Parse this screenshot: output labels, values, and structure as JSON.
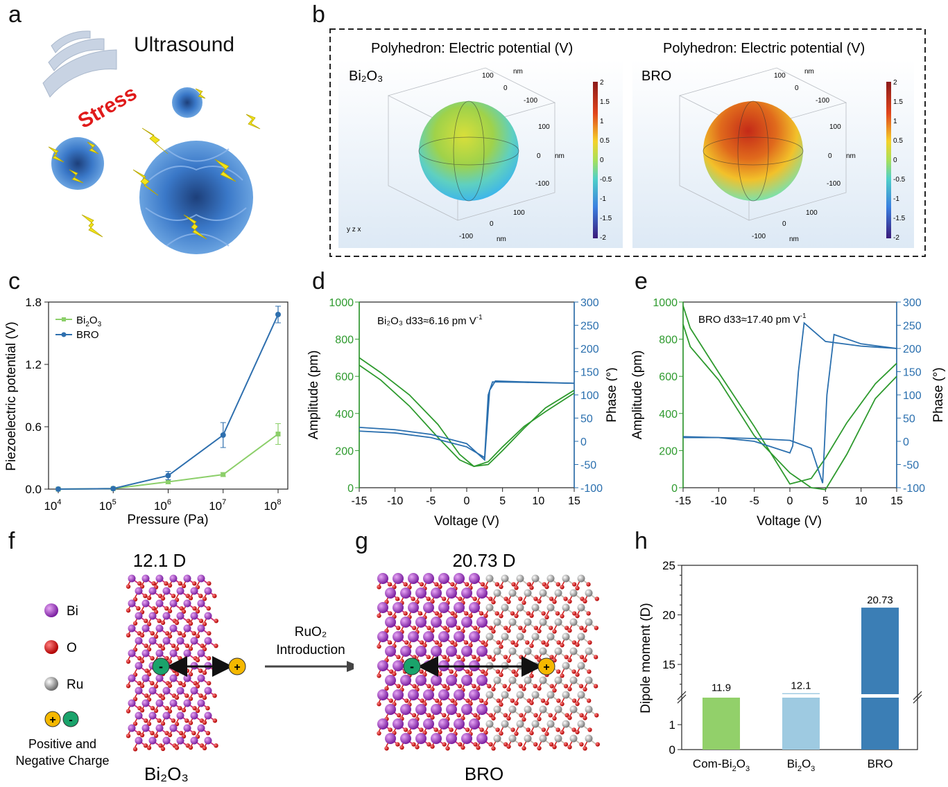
{
  "panels": {
    "a": "a",
    "b": "b",
    "c": "c",
    "d": "d",
    "e": "e",
    "f": "f",
    "g": "g",
    "h": "h"
  },
  "panel_a": {
    "title": "Ultrasound",
    "stress": "Stress",
    "colors": {
      "flower": "#3a78c8",
      "bolt": "#f2e31a",
      "stress": "#e01b1b"
    }
  },
  "panel_b": {
    "left": {
      "title": "Polyhedron: Electric potential (V)",
      "material": "Bi₂O₃"
    },
    "right": {
      "title": "Polyhedron: Electric potential (V)",
      "material": "BRO"
    },
    "colorbar_ticks": [
      "2",
      "1.5",
      "1",
      "0.5",
      "0",
      "-0.5",
      "-1",
      "-1.5",
      "-2"
    ],
    "axis_ticks": {
      "t100": "100",
      "t0": "0",
      "tm100": "-100",
      "nm": "nm"
    },
    "triad": "y z x"
  },
  "chart_data": [
    {
      "type": "line",
      "id": "c",
      "xlabel": "Pressure (Pa)",
      "ylabel": "Piezoelectric potential (V)",
      "categories": [
        "10",
        "10",
        "10",
        "10",
        "10"
      ],
      "category_exponents": [
        "4",
        "5",
        "6",
        "7",
        "8"
      ],
      "ylim": [
        0,
        1.8
      ],
      "yticks": [
        "0.0",
        "0.6",
        "1.2",
        "1.8"
      ],
      "series": [
        {
          "name": "Bi",
          "name_sub": "2",
          "name_mid": "O",
          "name_sub2": "3",
          "color": "#8ccf6a",
          "values": [
            0.0,
            0.005,
            0.07,
            0.14,
            0.53
          ],
          "err": [
            0,
            0,
            0.02,
            0.02,
            0.1
          ]
        },
        {
          "name": "BRO",
          "color": "#2e6fae",
          "values": [
            0.0,
            0.005,
            0.13,
            0.52,
            1.68
          ],
          "err": [
            0,
            0,
            0.04,
            0.12,
            0.08
          ]
        }
      ]
    },
    {
      "type": "line",
      "id": "d",
      "xlabel": "Voltage (V)",
      "ylabel": "Amplitude (pm)",
      "y2label": "Phase (°)",
      "annotation": "Bi₂O₃  d33≈6.16 pm V",
      "annotation_exp": "-1",
      "xlim": [
        -15,
        15
      ],
      "ylim": [
        0,
        1000
      ],
      "y2lim": [
        -100,
        300
      ],
      "xticks": [
        "-15",
        "-10",
        "-5",
        "0",
        "5",
        "10",
        "15"
      ],
      "yticks": [
        "0",
        "200",
        "400",
        "600",
        "800",
        "1000"
      ],
      "y2ticks": [
        "-100",
        "-50",
        "0",
        "50",
        "100",
        "150",
        "200",
        "250",
        "300"
      ],
      "amplitude_up": {
        "x": [
          -15,
          -12,
          -8,
          -4,
          -1,
          1,
          3,
          5,
          8,
          11,
          15
        ],
        "y": [
          700,
          620,
          500,
          340,
          180,
          115,
          140,
          220,
          330,
          410,
          510
        ]
      },
      "amplitude_down": {
        "x": [
          -15,
          -12,
          -8,
          -4,
          -1,
          1,
          3,
          5,
          8,
          11,
          15
        ],
        "y": [
          660,
          580,
          440,
          270,
          150,
          115,
          125,
          200,
          320,
          430,
          525
        ]
      },
      "phase_up": {
        "x": [
          -15,
          -10,
          -5,
          0,
          2.5,
          3.2,
          4,
          8,
          15
        ],
        "y": [
          30,
          25,
          15,
          -5,
          -40,
          110,
          130,
          128,
          125
        ]
      },
      "phase_down": {
        "x": [
          -15,
          -10,
          -5,
          0,
          2.5,
          3.0,
          3.6,
          8,
          15
        ],
        "y": [
          22,
          18,
          8,
          -12,
          -35,
          100,
          128,
          127,
          125
        ]
      }
    },
    {
      "type": "line",
      "id": "e",
      "xlabel": "Voltage (V)",
      "ylabel": "Amplitude (pm)",
      "y2label": "Phase (°)",
      "annotation": "BRO  d33≈17.40 pm V",
      "annotation_exp": "-1",
      "xlim": [
        -15,
        15
      ],
      "ylim": [
        0,
        1000
      ],
      "y2lim": [
        -100,
        300
      ],
      "xticks": [
        "-15",
        "-10",
        "-5",
        "0",
        "5",
        "10",
        "15"
      ],
      "yticks": [
        "0",
        "200",
        "400",
        "600",
        "800",
        "1000"
      ],
      "y2ticks": [
        "-100",
        "-50",
        "0",
        "50",
        "100",
        "150",
        "200",
        "250",
        "300"
      ],
      "amplitude_a": {
        "x": [
          -15,
          -14,
          -10,
          -5,
          0,
          3,
          5,
          8,
          12,
          15
        ],
        "y": [
          980,
          860,
          620,
          330,
          20,
          50,
          160,
          350,
          560,
          670
        ]
      },
      "amplitude_b": {
        "x": [
          -15,
          -14,
          -10,
          -5,
          0,
          3,
          5,
          8,
          12,
          15
        ],
        "y": [
          880,
          760,
          580,
          280,
          80,
          0,
          -10,
          180,
          480,
          600
        ]
      },
      "phase_a": {
        "x": [
          -15,
          -10,
          -5,
          0,
          0.4,
          1.2,
          2,
          5,
          10,
          15
        ],
        "y": [
          10,
          8,
          0,
          -25,
          -10,
          150,
          255,
          215,
          205,
          200
        ]
      },
      "phase_b": {
        "x": [
          -15,
          -10,
          -5,
          0,
          3,
          4.6,
          5.2,
          6.2,
          10,
          15
        ],
        "y": [
          8,
          8,
          6,
          2,
          -15,
          -90,
          100,
          230,
          210,
          200
        ]
      }
    },
    {
      "type": "bar",
      "id": "h",
      "ylabel": "Dipole moment (D)",
      "categories": [
        "Com-Bi₂O₃",
        "Bi₂O₃",
        "BRO"
      ],
      "category_label_parts": [
        [
          "Com-Bi",
          "2",
          "O",
          "3"
        ],
        [
          "Bi",
          "2",
          "O",
          "3"
        ],
        [
          "BRO",
          "",
          "",
          " "
        ]
      ],
      "values": [
        11.9,
        12.1,
        20.73
      ],
      "value_labels": [
        "11.9",
        "12.1",
        "20.73"
      ],
      "colors": [
        "#92d06a",
        "#9ecae1",
        "#3b7eb5"
      ],
      "yticks_upper": [
        "15",
        "20",
        "25"
      ],
      "yticks_lower": [
        "0",
        "1"
      ],
      "axis_break": true,
      "ylim_upper": [
        12,
        25
      ],
      "ylim_lower": [
        0,
        2
      ]
    }
  ],
  "panel_f": {
    "dipole": "12.1 D",
    "legend": [
      "Bi",
      "O",
      "Ru"
    ],
    "charge_label_1": "Positive and",
    "charge_label_2": "Negative Charge",
    "material": "Bi₂O₃",
    "plus": "+",
    "minus": "-"
  },
  "panel_g": {
    "dipole": "20.73 D",
    "material": "BRO",
    "arrow_label_1": "RuO₂",
    "arrow_label_2": "Introduction",
    "plus": "+",
    "minus": "-"
  }
}
